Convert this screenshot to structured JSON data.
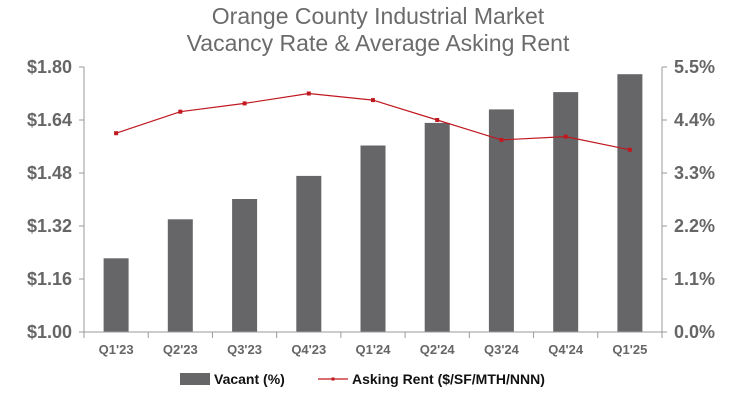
{
  "chart_data": {
    "type": "bar",
    "title": "Orange County Industrial Market",
    "subtitle": "Vacancy Rate & Average Asking Rent",
    "categories": [
      "Q1'23",
      "Q2'23",
      "Q3'23",
      "Q4'23",
      "Q1'24",
      "Q2'24",
      "Q3'24",
      "Q4'24",
      "Q1'25"
    ],
    "series": [
      {
        "name": "Vacant (%)",
        "type": "bar",
        "axis": "right",
        "color": "#666669",
        "values": [
          1.53,
          2.34,
          2.76,
          3.24,
          3.87,
          4.34,
          4.62,
          4.98,
          5.35
        ]
      },
      {
        "name": "Asking Rent ($/SF/MTH/NNN)",
        "type": "line",
        "axis": "left",
        "color": "#c0181f",
        "values": [
          1.6,
          1.665,
          1.69,
          1.72,
          1.7,
          1.64,
          1.58,
          1.59,
          1.55
        ]
      }
    ],
    "y_left": {
      "min": 1.0,
      "max": 1.8,
      "ticks": [
        1.0,
        1.16,
        1.32,
        1.48,
        1.64,
        1.8
      ],
      "tick_labels": [
        "$1.00",
        "$1.16",
        "$1.32",
        "$1.48",
        "$1.64",
        "$1.80"
      ]
    },
    "y_right": {
      "min": 0,
      "max": 5.5,
      "ticks": [
        0,
        1.1,
        2.2,
        3.3,
        4.4,
        5.5
      ],
      "tick_labels": [
        "0.0%",
        "1.1%",
        "2.2%",
        "3.3%",
        "4.4%",
        "5.5%"
      ]
    },
    "grid": false,
    "legend_position": "bottom"
  }
}
